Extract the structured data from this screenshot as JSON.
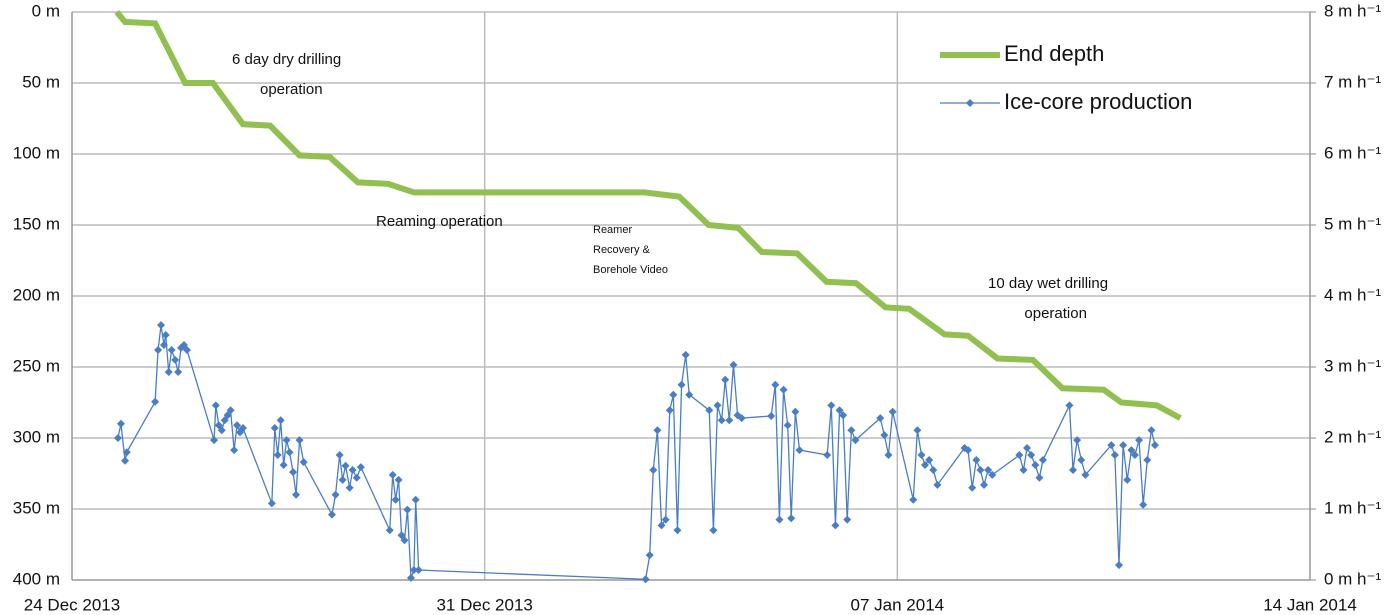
{
  "chart_data": {
    "type": "line",
    "x": [],
    "series": [
      {
        "name": "End depth",
        "color": "#92c050",
        "axis": "y",
        "x": [
          0.76,
          0.9,
          1.41,
          1.92,
          2.39,
          2.9,
          3.36,
          3.86,
          4.37,
          4.85,
          5.36,
          5.8,
          9.71,
          10.3,
          10.8,
          11.3,
          11.7,
          12.3,
          12.8,
          13.3,
          13.8,
          14.2,
          14.8,
          15.2,
          15.7,
          16.3,
          16.8,
          17.5,
          17.8,
          18.4,
          18.8
        ],
        "values": [
          0,
          7,
          8,
          50,
          50,
          79,
          80,
          101,
          102,
          120,
          121,
          127,
          127,
          130,
          150,
          152,
          169,
          170,
          190,
          191,
          208,
          209,
          227,
          228,
          244,
          245,
          265,
          266,
          275,
          277,
          286
        ]
      },
      {
        "name": "Ice-core production",
        "color": "#4a7ec4",
        "axis": "y2",
        "x": [
          0.78,
          0.83,
          0.9,
          0.93,
          1.41,
          1.46,
          1.51,
          1.56,
          1.59,
          1.64,
          1.69,
          1.75,
          1.8,
          1.85,
          1.9,
          1.95,
          2.41,
          2.44,
          2.49,
          2.54,
          2.59,
          2.64,
          2.69,
          2.75,
          2.8,
          2.85,
          2.9,
          3.39,
          3.44,
          3.49,
          3.54,
          3.59,
          3.64,
          3.69,
          3.75,
          3.8,
          3.86,
          3.93,
          4.41,
          4.47,
          4.54,
          4.59,
          4.64,
          4.71,
          4.76,
          4.83,
          4.9,
          5.39,
          5.44,
          5.49,
          5.54,
          5.59,
          5.64,
          5.69,
          5.75,
          5.8,
          5.83,
          5.88,
          9.73,
          9.8,
          9.86,
          9.93,
          10.0,
          10.07,
          10.14,
          10.2,
          10.27,
          10.34,
          10.41,
          10.47,
          10.81,
          10.88,
          10.95,
          11.02,
          11.08,
          11.15,
          11.22,
          11.29,
          11.36,
          11.86,
          11.93,
          12.0,
          12.07,
          12.14,
          12.2,
          12.27,
          12.34,
          12.81,
          12.88,
          12.95,
          13.02,
          13.08,
          13.15,
          13.22,
          13.29,
          13.71,
          13.78,
          13.85,
          13.92,
          14.27,
          14.34,
          14.41,
          14.47,
          14.54,
          14.61,
          14.68,
          15.14,
          15.2,
          15.27,
          15.34,
          15.41,
          15.47,
          15.54,
          15.61,
          16.07,
          16.14,
          16.2,
          16.27,
          16.34,
          16.41,
          16.47,
          16.92,
          16.98,
          17.05,
          17.12,
          17.19,
          17.63,
          17.69,
          17.76,
          17.83,
          17.9,
          17.97,
          18.03,
          18.1,
          18.17,
          18.24,
          18.31,
          18.37
        ],
        "values": [
          2.0,
          2.2,
          1.68,
          1.8,
          2.51,
          3.24,
          3.59,
          3.31,
          3.45,
          2.93,
          3.24,
          3.1,
          2.93,
          3.27,
          3.31,
          3.24,
          1.97,
          2.46,
          2.18,
          2.11,
          2.25,
          2.32,
          2.39,
          1.83,
          2.18,
          2.08,
          2.14,
          1.08,
          2.14,
          1.76,
          2.25,
          1.62,
          1.97,
          1.8,
          1.52,
          1.2,
          1.97,
          1.66,
          0.92,
          1.2,
          1.76,
          1.41,
          1.61,
          1.3,
          1.55,
          1.44,
          1.59,
          0.7,
          1.48,
          1.13,
          1.41,
          0.63,
          0.56,
          0.99,
          0.03,
          0.14,
          1.13,
          0.14,
          0.01,
          0.35,
          1.55,
          2.11,
          0.77,
          0.85,
          2.39,
          2.61,
          0.7,
          2.75,
          3.17,
          2.61,
          2.39,
          0.7,
          2.46,
          2.25,
          2.82,
          2.25,
          3.03,
          2.32,
          2.28,
          2.31,
          2.75,
          0.85,
          2.68,
          2.18,
          0.87,
          2.37,
          1.83,
          1.76,
          2.46,
          0.77,
          2.39,
          2.32,
          0.85,
          2.11,
          1.97,
          2.28,
          2.04,
          1.76,
          2.37,
          1.13,
          2.11,
          1.76,
          1.62,
          1.69,
          1.55,
          1.34,
          1.86,
          1.83,
          1.3,
          1.69,
          1.55,
          1.34,
          1.55,
          1.48,
          1.76,
          1.55,
          1.86,
          1.76,
          1.62,
          1.44,
          1.69,
          2.46,
          1.55,
          1.97,
          1.69,
          1.48,
          1.9,
          1.76,
          0.21,
          1.9,
          1.41,
          1.83,
          1.76,
          1.97,
          1.06,
          1.69,
          2.11,
          1.9
        ]
      }
    ],
    "xlim": [
      0,
      21
    ],
    "xticks": [
      {
        "value": 0,
        "label": "24 Dec 2013"
      },
      {
        "value": 7,
        "label": "31 Dec 2013"
      },
      {
        "value": 14,
        "label": "07 Jan 2014"
      },
      {
        "value": 21,
        "label": "14 Jan 2014"
      }
    ],
    "ylim": [
      400,
      0
    ],
    "yticks": [
      {
        "value": 0,
        "label": "0 m"
      },
      {
        "value": 50,
        "label": "50 m"
      },
      {
        "value": 100,
        "label": "100 m"
      },
      {
        "value": 150,
        "label": "150 m"
      },
      {
        "value": 200,
        "label": "200 m"
      },
      {
        "value": 250,
        "label": "250 m"
      },
      {
        "value": 300,
        "label": "300 m"
      },
      {
        "value": 350,
        "label": "350 m"
      },
      {
        "value": 400,
        "label": "400 m"
      }
    ],
    "y2lim": [
      0,
      8
    ],
    "y2ticks": [
      {
        "value": 0,
        "label": "0 m h⁻¹"
      },
      {
        "value": 1,
        "label": "1 m h⁻¹"
      },
      {
        "value": 2,
        "label": "2 m h⁻¹"
      },
      {
        "value": 3,
        "label": "3 m h⁻¹"
      },
      {
        "value": 4,
        "label": "4 m h⁻¹"
      },
      {
        "value": 5,
        "label": "5 m h⁻¹"
      },
      {
        "value": 6,
        "label": "6 m h⁻¹"
      },
      {
        "value": 7,
        "label": "7 m h⁻¹"
      },
      {
        "value": 8,
        "label": "8 m h⁻¹"
      }
    ],
    "grid": true,
    "legend": "upper right",
    "annotations": [
      {
        "lines": [
          "6 day dry drilling",
          "operation"
        ]
      },
      {
        "lines": [
          "Reaming operation"
        ]
      },
      {
        "lines": [
          "Reamer",
          "Recovery &",
          "Borehole Video"
        ]
      },
      {
        "lines": [
          "10 day wet drilling",
          "operation"
        ]
      }
    ]
  }
}
